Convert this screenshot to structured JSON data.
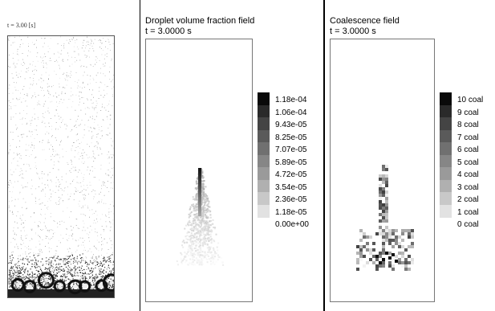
{
  "left_panel": {
    "time_label": "t = 3.00 [s]"
  },
  "middle_panel": {
    "title": "Droplet volume fraction field",
    "time": "t = 3.0000 s",
    "legend": [
      "1.18e-04",
      "1.06e-04",
      "9.43e-05",
      "8.25e-05",
      "7.07e-05",
      "5.89e-05",
      "4.72e-05",
      "3.54e-05",
      "2.36e-05",
      "1.18e-05",
      "0.00e+00"
    ]
  },
  "right_panel": {
    "title": "Coalescence field",
    "time": "t = 3.0000 s",
    "legend": [
      "10 coal",
      "9 coal",
      "8 coal",
      "7 coal",
      "6 coal",
      "5 coal",
      "4 coal",
      "3 coal",
      "2 coal",
      "1 coal",
      "0 coal"
    ]
  },
  "colors": {
    "legend_scale": [
      "#0a0a0a",
      "#2a2a2a",
      "#444444",
      "#5a5a5a",
      "#707070",
      "#868686",
      "#9a9a9a",
      "#b0b0b0",
      "#c8c8c8",
      "#e2e2e2",
      "#ffffff"
    ]
  }
}
